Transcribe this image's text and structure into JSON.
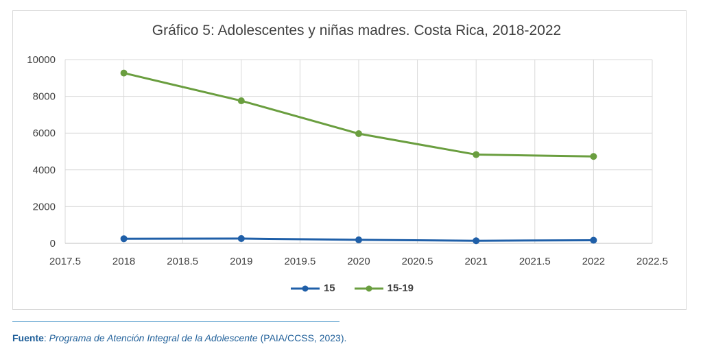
{
  "source": {
    "label": "Fuente",
    "sep": ": ",
    "italic": "Programa de Atención Integral de la Adolescente",
    "rest": " (PAIA/CCSS, 2023)."
  },
  "chart_data": {
    "type": "line",
    "title": "Gráfico 5: Adolescentes y niñas madres. Costa Rica,  2018-2022",
    "xlabel": "",
    "ylabel": "",
    "xlim": [
      2017.5,
      2022.5
    ],
    "ylim": [
      0,
      10000
    ],
    "x_ticks": [
      "2017.5",
      "2018",
      "2018.5",
      "2019",
      "2019.5",
      "2020",
      "2020.5",
      "2021",
      "2021.5",
      "2022",
      "2022.5"
    ],
    "y_ticks": [
      "0",
      "2000",
      "4000",
      "6000",
      "8000",
      "10000"
    ],
    "grid": true,
    "legend_position": "bottom",
    "x": [
      2018,
      2019,
      2020,
      2021,
      2022
    ],
    "series": [
      {
        "name": "15",
        "color": "#1f5fa8",
        "values": [
          250,
          260,
          190,
          140,
          170
        ]
      },
      {
        "name": "15-19",
        "color": "#6a9e3f",
        "values": [
          9270,
          7760,
          5970,
          4830,
          4730
        ]
      }
    ]
  }
}
